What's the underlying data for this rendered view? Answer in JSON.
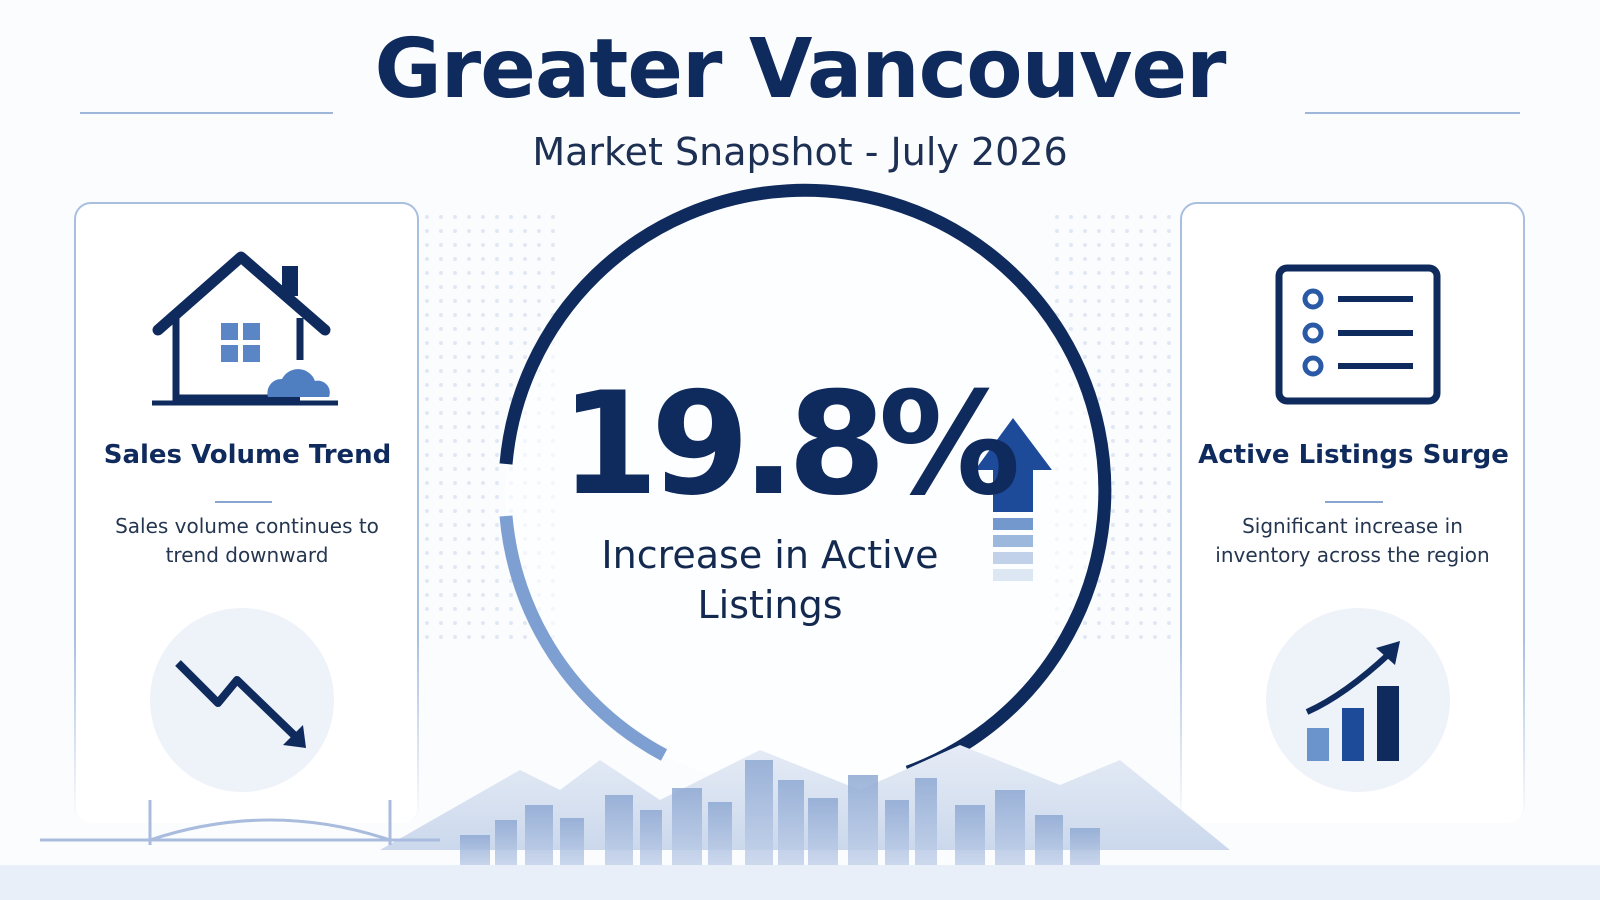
{
  "header": {
    "title": "Greater Vancouver",
    "subtitle": "Market Snapshot - July 2026"
  },
  "left_card": {
    "title": "Sales Volume Trend",
    "text": "Sales volume continues to trend downward"
  },
  "center": {
    "value": "19.8%",
    "label": "Increase in Active Listings"
  },
  "right_card": {
    "title": "Active Listings Surge",
    "text": "Significant increase in inventory across the region"
  }
}
